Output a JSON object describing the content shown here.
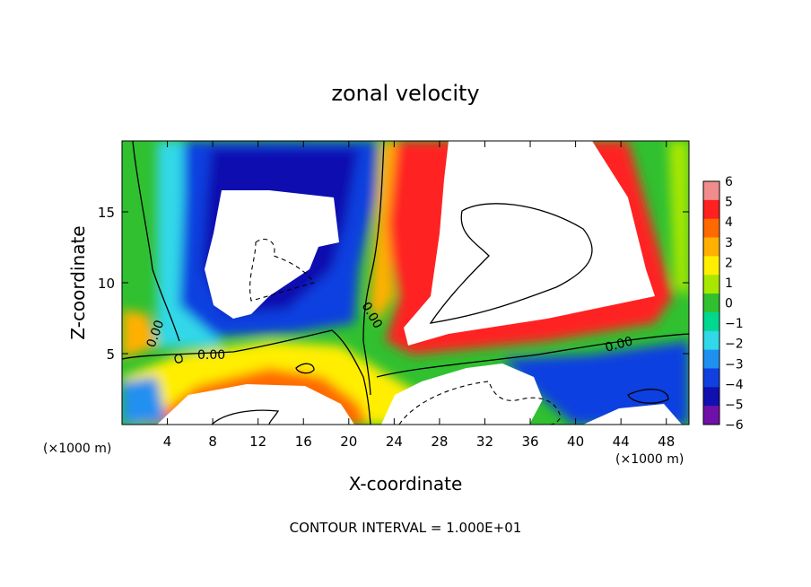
{
  "chart_data": {
    "type": "heatmap",
    "title": "zonal velocity",
    "xlabel": "X-coordinate",
    "ylabel": "Z-coordinate",
    "x_unit_left": "(×1000 m)",
    "x_unit_right": "(×1000 m)",
    "xlim": [
      0,
      50
    ],
    "ylim": [
      0,
      20
    ],
    "x_ticks": [
      4,
      8,
      12,
      16,
      20,
      24,
      28,
      32,
      36,
      40,
      44,
      48
    ],
    "y_ticks": [
      5,
      10,
      15
    ],
    "colorbar": {
      "ticks": [
        6,
        5,
        4,
        3,
        2,
        1,
        0,
        -1,
        -2,
        -3,
        -4,
        -5,
        -6
      ],
      "range": [
        -6,
        6
      ],
      "colors": [
        "#f08c8c",
        "#ff2020",
        "#ff6a00",
        "#ffb000",
        "#ffee00",
        "#a8e800",
        "#30c030",
        "#00d890",
        "#30d8e8",
        "#2090f0",
        "#1040e0",
        "#1010b0",
        "#7010a8"
      ]
    },
    "contour_labels": [
      "0.00",
      "0.00",
      "0.00",
      "0.00"
    ],
    "footer": "CONTOUR INTERVAL = 1.000E+01"
  }
}
